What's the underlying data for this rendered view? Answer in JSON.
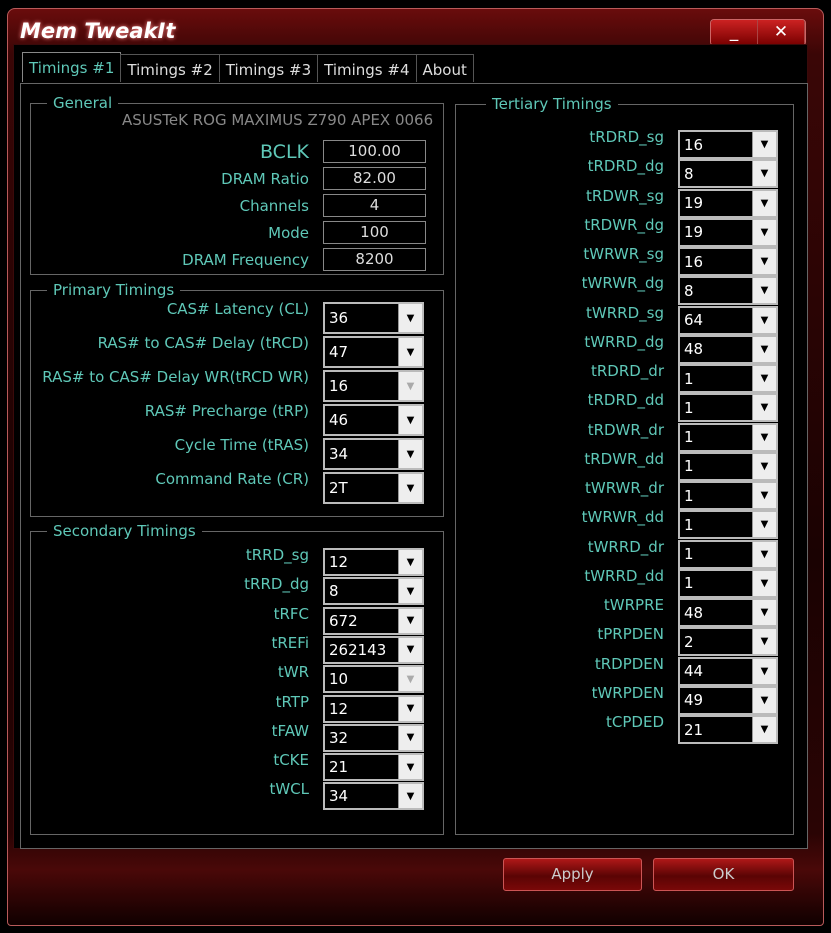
{
  "window": {
    "title": "Mem TweakIt",
    "minimize_label": "_",
    "close_label": "✕"
  },
  "tabs": [
    "Timings #1",
    "Timings #2",
    "Timings #3",
    "Timings #4",
    "About"
  ],
  "general": {
    "title": "General",
    "model": "ASUSTeK ROG MAXIMUS Z790 APEX 0066",
    "rows": [
      {
        "label": "BCLK",
        "value": "100.00"
      },
      {
        "label": "DRAM Ratio",
        "value": "82.00"
      },
      {
        "label": "Channels",
        "value": "4"
      },
      {
        "label": "Mode",
        "value": "100"
      },
      {
        "label": "DRAM Frequency",
        "value": "8200"
      }
    ]
  },
  "primary": {
    "title": "Primary Timings",
    "rows": [
      {
        "label": "CAS# Latency (CL)",
        "value": "36",
        "enabled": true
      },
      {
        "label": "RAS# to CAS# Delay (tRCD)",
        "value": "47",
        "enabled": true
      },
      {
        "label": "RAS# to CAS# Delay WR(tRCD WR)",
        "value": "16",
        "enabled": false
      },
      {
        "label": "RAS# Precharge (tRP)",
        "value": "46",
        "enabled": true
      },
      {
        "label": "Cycle Time (tRAS)",
        "value": "34",
        "enabled": true
      },
      {
        "label": "Command Rate (CR)",
        "value": "2T",
        "enabled": true
      }
    ]
  },
  "secondary": {
    "title": "Secondary Timings",
    "rows": [
      {
        "label": "tRRD_sg",
        "value": "12",
        "enabled": true
      },
      {
        "label": "tRRD_dg",
        "value": "8",
        "enabled": true
      },
      {
        "label": "tRFC",
        "value": "672",
        "enabled": true
      },
      {
        "label": "tREFi",
        "value": "262143",
        "enabled": true
      },
      {
        "label": "tWR",
        "value": "10",
        "enabled": false
      },
      {
        "label": "tRTP",
        "value": "12",
        "enabled": true
      },
      {
        "label": "tFAW",
        "value": "32",
        "enabled": true
      },
      {
        "label": "tCKE",
        "value": "21",
        "enabled": true
      },
      {
        "label": "tWCL",
        "value": "34",
        "enabled": true
      }
    ]
  },
  "tertiary": {
    "title": "Tertiary Timings",
    "rows": [
      {
        "label": "tRDRD_sg",
        "value": "16"
      },
      {
        "label": "tRDRD_dg",
        "value": "8"
      },
      {
        "label": "tRDWR_sg",
        "value": "19"
      },
      {
        "label": "tRDWR_dg",
        "value": "19"
      },
      {
        "label": "tWRWR_sg",
        "value": "16"
      },
      {
        "label": "tWRWR_dg",
        "value": "8"
      },
      {
        "label": "tWRRD_sg",
        "value": "64"
      },
      {
        "label": "tWRRD_dg",
        "value": "48"
      },
      {
        "label": "tRDRD_dr",
        "value": "1"
      },
      {
        "label": "tRDRD_dd",
        "value": "1"
      },
      {
        "label": "tRDWR_dr",
        "value": "1"
      },
      {
        "label": "tRDWR_dd",
        "value": "1"
      },
      {
        "label": "tWRWR_dr",
        "value": "1"
      },
      {
        "label": "tWRWR_dd",
        "value": "1"
      },
      {
        "label": "tWRRD_dr",
        "value": "1"
      },
      {
        "label": "tWRRD_dd",
        "value": "1"
      },
      {
        "label": "tWRPRE",
        "value": "48"
      },
      {
        "label": "tPRPDEN",
        "value": "2"
      },
      {
        "label": "tRDPDEN",
        "value": "44"
      },
      {
        "label": "tWRPDEN",
        "value": "49"
      },
      {
        "label": "tCPDED",
        "value": "21"
      }
    ]
  },
  "buttons": {
    "apply": "Apply",
    "ok": "OK"
  },
  "colors": {
    "label": "#5fc8b8",
    "accent": "#b01818"
  }
}
